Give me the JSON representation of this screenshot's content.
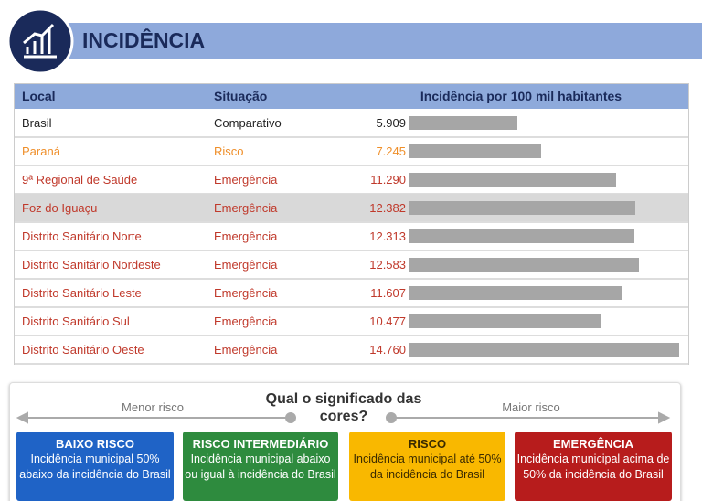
{
  "header": {
    "title": "INCIDÊNCIA"
  },
  "table": {
    "columns": [
      "Local",
      "Situação",
      "Incidência por 100 mil habitantes"
    ],
    "xlim": [
      0,
      15000
    ],
    "bar_color": "#a6a6a6",
    "highlighted_row": 3,
    "rows": [
      {
        "local": "Brasil",
        "situacao": "Comparativo",
        "value": 5909,
        "value_label": "5.909",
        "color": "#222222"
      },
      {
        "local": "Paraná",
        "situacao": "Risco",
        "value": 7245,
        "value_label": "7.245",
        "color": "#ef8f2a"
      },
      {
        "local": "9ª Regional de Saúde",
        "situacao": "Emergência",
        "value": 11290,
        "value_label": "11.290",
        "color": "#c0392b"
      },
      {
        "local": "Foz do Iguaçu",
        "situacao": "Emergência",
        "value": 12382,
        "value_label": "12.382",
        "color": "#c0392b"
      },
      {
        "local": "Distrito Sanitário Norte",
        "situacao": "Emergência",
        "value": 12313,
        "value_label": "12.313",
        "color": "#c0392b"
      },
      {
        "local": "Distrito Sanitário Nordeste",
        "situacao": "Emergência",
        "value": 12583,
        "value_label": "12.583",
        "color": "#c0392b"
      },
      {
        "local": "Distrito Sanitário Leste",
        "situacao": "Emergência",
        "value": 11607,
        "value_label": "11.607",
        "color": "#c0392b"
      },
      {
        "local": "Distrito Sanitário Sul",
        "situacao": "Emergência",
        "value": 10477,
        "value_label": "10.477",
        "color": "#c0392b"
      },
      {
        "local": "Distrito Sanitário Oeste",
        "situacao": "Emergência",
        "value": 14760,
        "value_label": "14.760",
        "color": "#c0392b"
      }
    ]
  },
  "legend": {
    "title": "Qual o significado das cores?",
    "low": "Menor risco",
    "high": "Maior risco",
    "items": [
      {
        "title": "BAIXO RISCO",
        "text": "Incidência municipal 50% abaixo da incidência do Brasil",
        "color": "#1f63c6",
        "text_color": "#ffffff"
      },
      {
        "title": "RISCO INTERMEDIÁRIO",
        "text": "Incidência municipal abaixo ou igual à incidência do Brasil",
        "color": "#2e8b3e",
        "text_color": "#ffffff"
      },
      {
        "title": "RISCO",
        "text": "Incidência municipal até 50% da incidência do Brasil",
        "color": "#f9b800",
        "text_color": "#3a2a00"
      },
      {
        "title": "EMERGÊNCIA",
        "text": "Incidência municipal acima de 50% da incidência do Brasil",
        "color": "#b71c1c",
        "text_color": "#ffffff"
      }
    ]
  }
}
